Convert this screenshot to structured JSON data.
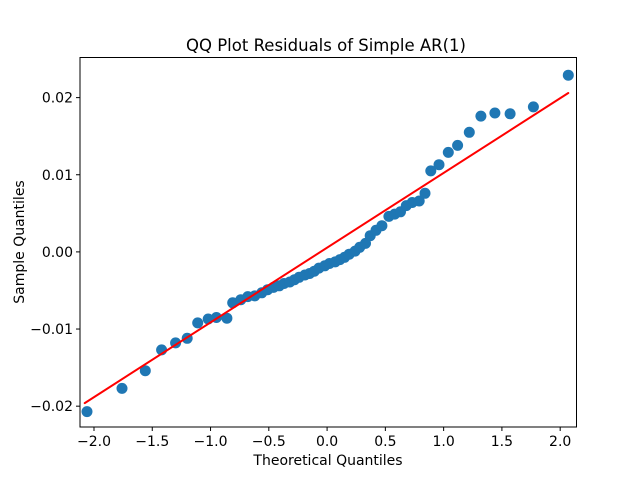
{
  "chart_data": {
    "type": "scatter",
    "title": "QQ Plot Residuals of Simple AR(1)",
    "xlabel": "Theoretical Quantiles",
    "ylabel": "Sample Quantiles",
    "xlim": [
      -2.12,
      2.14
    ],
    "ylim": [
      -0.0227,
      0.0252
    ],
    "grid": false,
    "legend": "none",
    "background_color": "#ffffff",
    "spine_color": "#000000",
    "x_ticks": [
      -2.0,
      -1.5,
      -1.0,
      -0.5,
      0.0,
      0.5,
      1.0,
      1.5,
      2.0
    ],
    "x_tick_labels": [
      "−2.0",
      "−1.5",
      "−1.0",
      "−0.5",
      "0.0",
      "0.5",
      "1.0",
      "1.5",
      "2.0"
    ],
    "y_ticks": [
      0.02,
      0.01,
      0.0,
      -0.01,
      -0.02
    ],
    "y_tick_labels": [
      "0.02",
      "0.01",
      "0.00",
      "−0.01",
      "−0.02"
    ],
    "series": [
      {
        "name": "residual-quantiles",
        "kind": "scatter",
        "color": "#1f77b4",
        "marker": "circle",
        "marker_radius": 5.5,
        "points": [
          [
            -2.06,
            -0.0207
          ],
          [
            -1.76,
            -0.0177
          ],
          [
            -1.56,
            -0.0154
          ],
          [
            -1.42,
            -0.0127
          ],
          [
            -1.3,
            -0.0118
          ],
          [
            -1.2,
            -0.0112
          ],
          [
            -1.11,
            -0.0092
          ],
          [
            -1.02,
            -0.0087
          ],
          [
            -0.95,
            -0.0085
          ],
          [
            -0.86,
            -0.0086
          ],
          [
            -0.81,
            -0.0066
          ],
          [
            -0.74,
            -0.0062
          ],
          [
            -0.68,
            -0.0058
          ],
          [
            -0.62,
            -0.0057
          ],
          [
            -0.56,
            -0.0053
          ],
          [
            -0.51,
            -0.0049
          ],
          [
            -0.46,
            -0.0046
          ],
          [
            -0.41,
            -0.0044
          ],
          [
            -0.37,
            -0.0041
          ],
          [
            -0.32,
            -0.0039
          ],
          [
            -0.28,
            -0.0036
          ],
          [
            -0.24,
            -0.0033
          ],
          [
            -0.19,
            -0.003
          ],
          [
            -0.15,
            -0.0028
          ],
          [
            -0.11,
            -0.0025
          ],
          [
            -0.07,
            -0.0021
          ],
          [
            -0.02,
            -0.0018
          ],
          [
            0.02,
            -0.0015
          ],
          [
            0.07,
            -0.0013
          ],
          [
            0.11,
            -0.001
          ],
          [
            0.15,
            -0.0007
          ],
          [
            0.19,
            -0.0003
          ],
          [
            0.24,
            0.0001
          ],
          [
            0.28,
            0.0006
          ],
          [
            0.33,
            0.0011
          ],
          [
            0.37,
            0.0021
          ],
          [
            0.42,
            0.0028
          ],
          [
            0.47,
            0.0034
          ],
          [
            0.53,
            0.0046
          ],
          [
            0.58,
            0.0049
          ],
          [
            0.63,
            0.0052
          ],
          [
            0.68,
            0.006
          ],
          [
            0.73,
            0.0064
          ],
          [
            0.79,
            0.0066
          ],
          [
            0.84,
            0.0076
          ],
          [
            0.89,
            0.0105
          ],
          [
            0.96,
            0.0113
          ],
          [
            1.04,
            0.0129
          ],
          [
            1.12,
            0.0138
          ],
          [
            1.22,
            0.0155
          ],
          [
            1.32,
            0.0176
          ],
          [
            1.44,
            0.018
          ],
          [
            1.57,
            0.0179
          ],
          [
            1.77,
            0.0188
          ],
          [
            2.07,
            0.0229
          ]
        ]
      },
      {
        "name": "qq-reference-line",
        "kind": "line",
        "color": "#ff0000",
        "line_width": 2,
        "points": [
          [
            -2.08,
            -0.0196
          ],
          [
            2.07,
            0.0206
          ]
        ]
      }
    ]
  }
}
